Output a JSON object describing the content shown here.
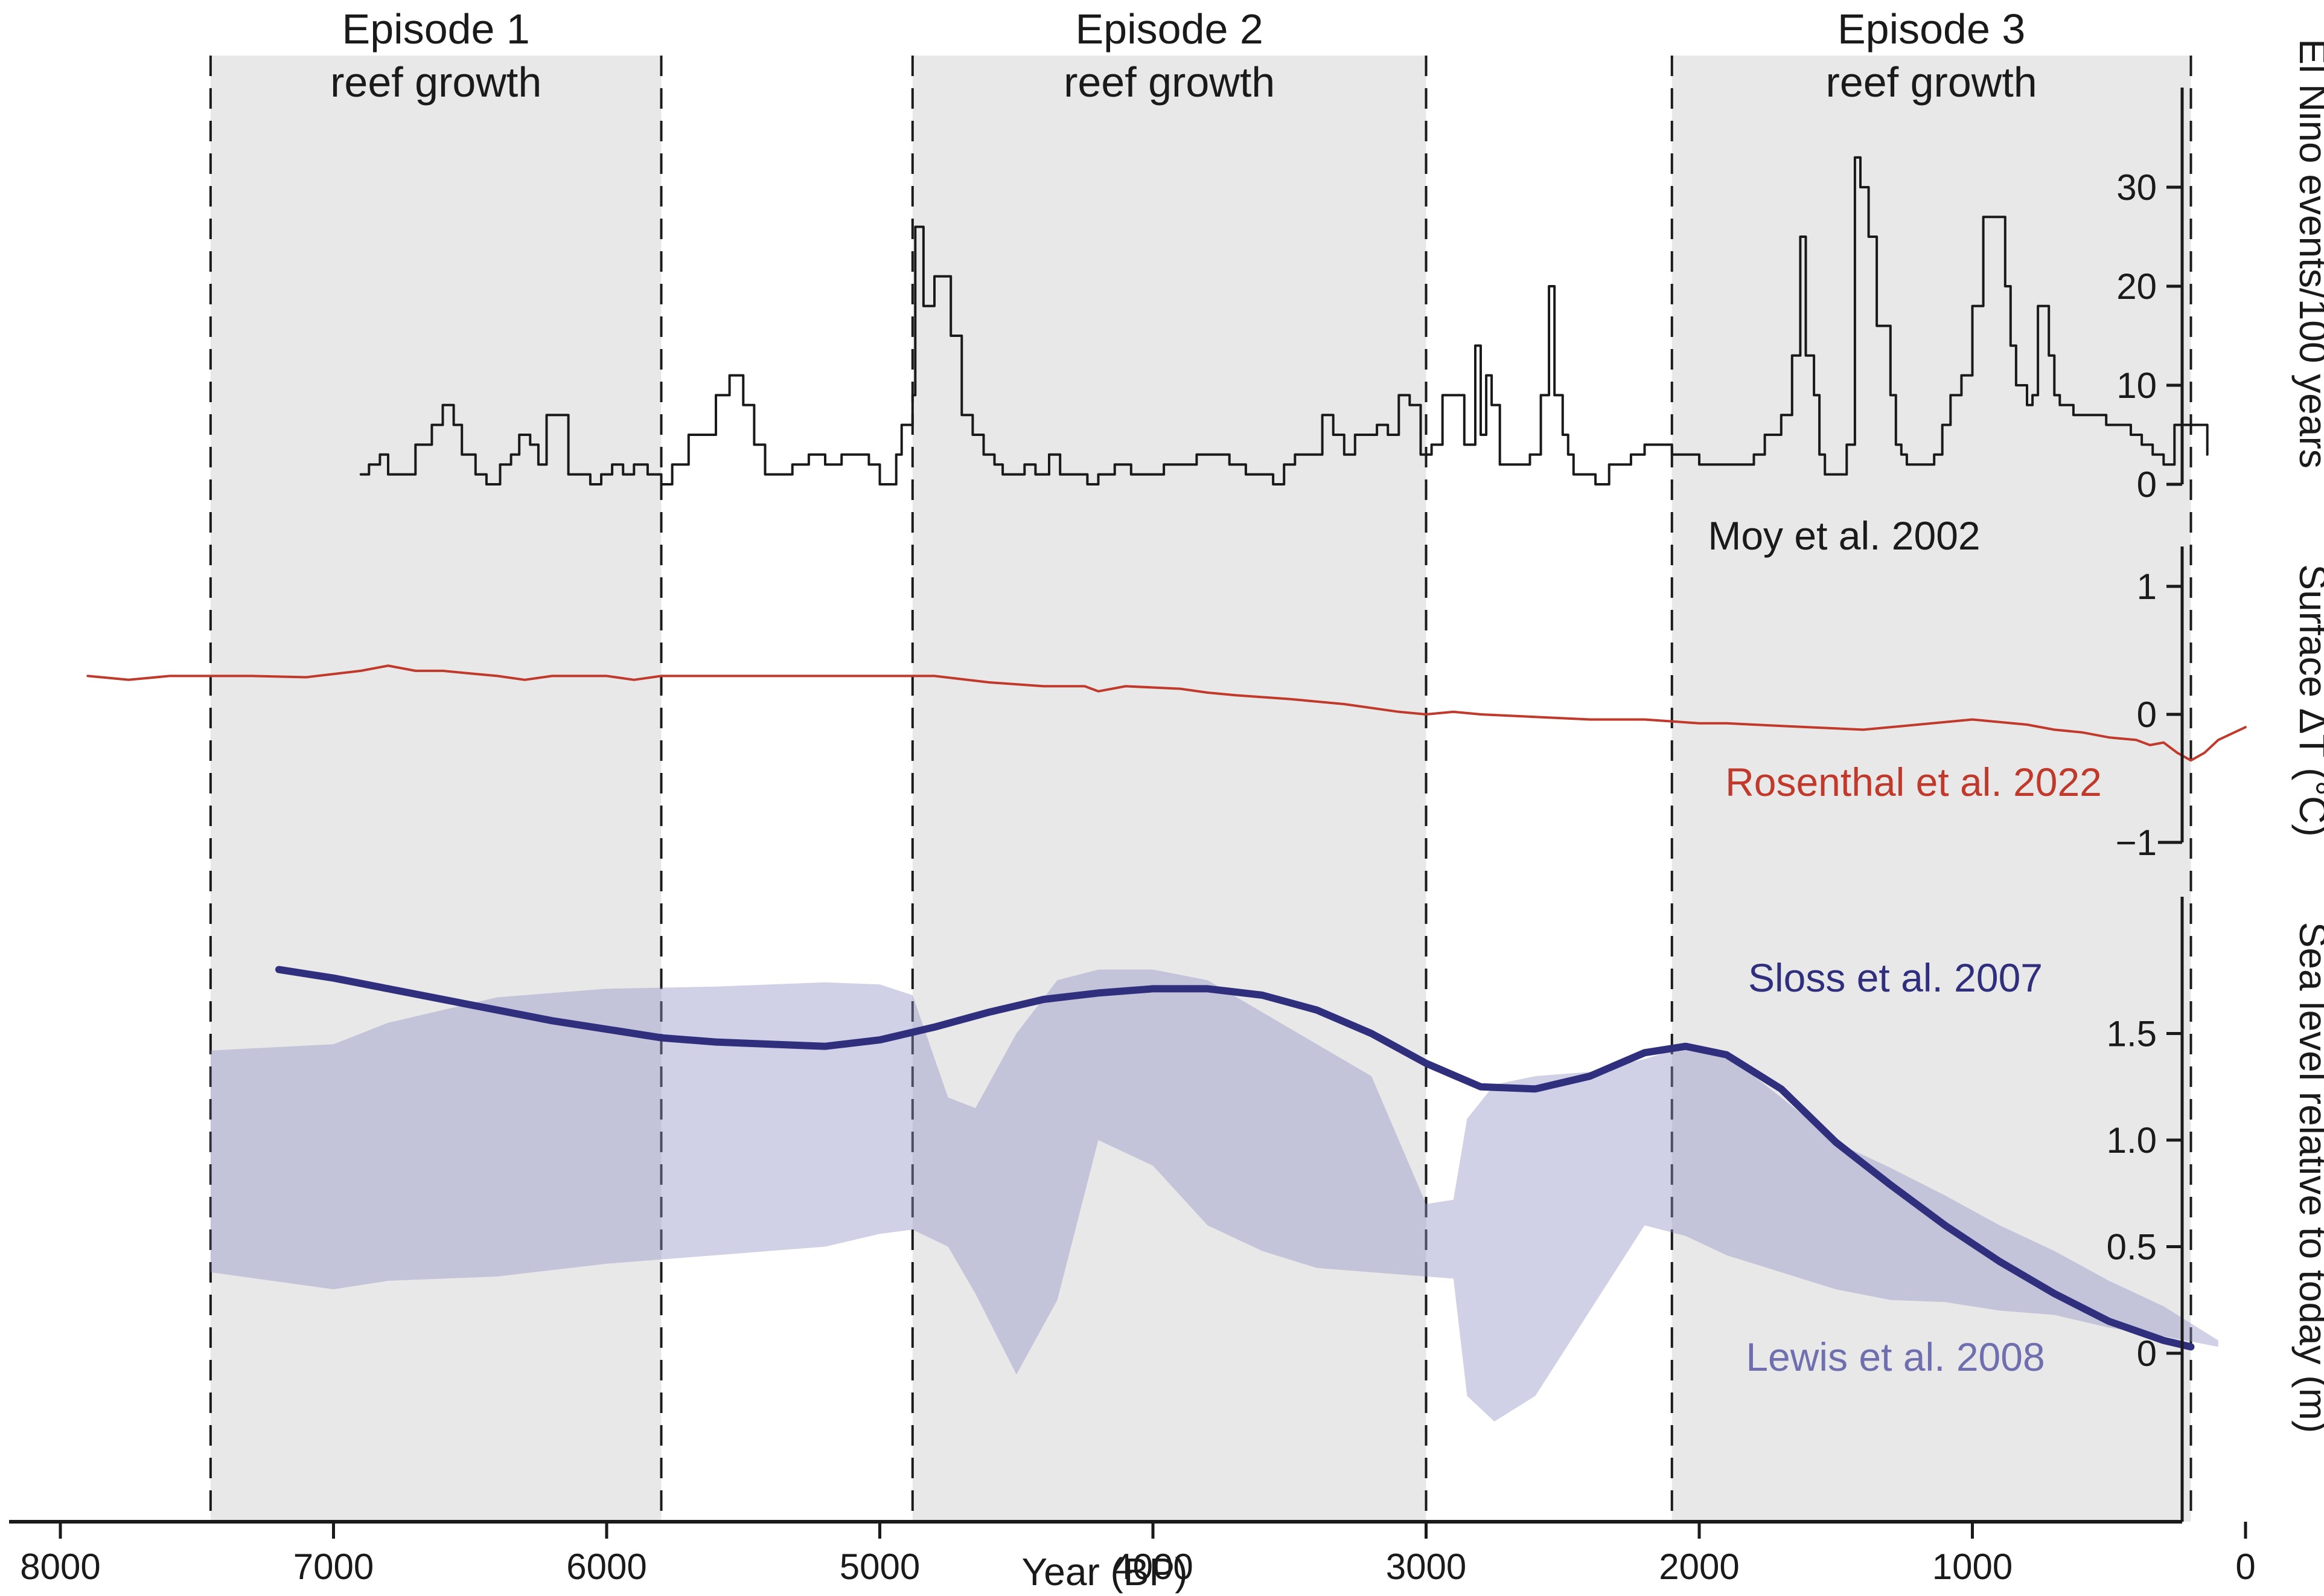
{
  "chart_data": {
    "type": "line",
    "x_axis": {
      "label": "Year (BP)",
      "range": [
        8000,
        0
      ],
      "ticks": [
        8000,
        7000,
        6000,
        5000,
        4000,
        3000,
        2000,
        1000,
        0
      ],
      "tick_labels": [
        "8000",
        "7000",
        "6000",
        "5000",
        "4000",
        "3000",
        "2000",
        "1000",
        "0"
      ]
    },
    "episodes": [
      {
        "title": "Episode 1",
        "subtitle": "reef growth",
        "start": 7450,
        "end": 5800
      },
      {
        "title": "Episode 2",
        "subtitle": "reef growth",
        "start": 4880,
        "end": 3000
      },
      {
        "title": "Episode 3",
        "subtitle": "reef growth",
        "start": 2100,
        "end": 200
      }
    ],
    "panels": [
      {
        "id": "elnino",
        "ylabel": "El Nino events/100 years",
        "ylim": [
          0,
          40
        ],
        "yticks": [
          0,
          10,
          20,
          30
        ],
        "ytick_labels": [
          "0",
          "10",
          "20",
          "30"
        ],
        "series": [
          {
            "name": "Moy et al. 2002",
            "color": "#1a1a1a",
            "step": true,
            "x": [
              6900,
              6870,
              6860,
              6830,
              6800,
              6760,
              6700,
              6640,
              6600,
              6560,
              6530,
              6480,
              6440,
              6390,
              6350,
              6320,
              6280,
              6250,
              6220,
              6190,
              6140,
              6110,
              6060,
              6020,
              5980,
              5940,
              5900,
              5850,
              5800,
              5760,
              5700,
              5650,
              5600,
              5550,
              5500,
              5460,
              5420,
              5370,
              5320,
              5260,
              5200,
              5140,
              5080,
              5040,
              5000,
              4940,
              4920,
              4880,
              4870,
              4840,
              4800,
              4780,
              4740,
              4700,
              4660,
              4620,
              4580,
              4550,
              4510,
              4470,
              4430,
              4380,
              4340,
              4290,
              4240,
              4200,
              4140,
              4080,
              4020,
              3960,
              3900,
              3840,
              3780,
              3720,
              3660,
              3600,
              3560,
              3520,
              3480,
              3440,
              3410,
              3380,
              3340,
              3300,
              3260,
              3220,
              3180,
              3140,
              3100,
              3060,
              3020,
              2980,
              2940,
              2900,
              2860,
              2820,
              2800,
              2780,
              2760,
              2730,
              2700,
              2660,
              2620,
              2580,
              2550,
              2530,
              2500,
              2480,
              2460,
              2420,
              2380,
              2330,
              2290,
              2250,
              2200,
              2170,
              2140,
              2100,
              2060,
              2000,
              1950,
              1920,
              1880,
              1840,
              1800,
              1760,
              1700,
              1660,
              1630,
              1610,
              1580,
              1560,
              1540,
              1500,
              1460,
              1430,
              1410,
              1380,
              1350,
              1300,
              1280,
              1260,
              1240,
              1200,
              1170,
              1140,
              1110,
              1080,
              1040,
              1000,
              960,
              920,
              880,
              860,
              840,
              800,
              780,
              760,
              720,
              700,
              680,
              650,
              630,
              600,
              560,
              540,
              510,
              480,
              450,
              420,
              380,
              340,
              300,
              260,
              220,
              180,
              140
            ],
            "y": [
              1,
              2,
              2,
              3,
              1,
              1,
              4,
              6,
              8,
              6,
              3,
              1,
              0,
              2,
              3,
              5,
              4,
              2,
              7,
              7,
              1,
              1,
              0,
              1,
              2,
              1,
              2,
              1,
              0,
              2,
              5,
              5,
              9,
              11,
              8,
              4,
              1,
              1,
              2,
              3,
              2,
              3,
              3,
              2,
              0,
              3,
              6,
              9,
              26,
              18,
              21,
              21,
              15,
              7,
              5,
              3,
              2,
              1,
              1,
              2,
              1,
              3,
              1,
              1,
              0,
              1,
              2,
              1,
              1,
              2,
              2,
              3,
              3,
              2,
              1,
              1,
              0,
              2,
              3,
              3,
              3,
              7,
              5,
              3,
              5,
              5,
              6,
              5,
              9,
              8,
              3,
              4,
              9,
              9,
              4,
              14,
              5,
              11,
              8,
              2,
              2,
              2,
              3,
              9,
              20,
              9,
              5,
              3,
              1,
              1,
              0,
              2,
              2,
              3,
              4,
              4,
              4,
              3,
              3,
              2,
              2,
              2,
              2,
              2,
              3,
              5,
              7,
              13,
              25,
              13,
              9,
              3,
              1,
              1,
              4,
              33,
              30,
              25,
              16,
              9,
              4,
              3,
              2,
              2,
              2,
              3,
              6,
              9,
              11,
              18,
              27,
              27,
              20,
              14,
              10,
              8,
              9,
              18,
              13,
              9,
              8,
              8,
              7,
              7,
              7,
              7,
              6,
              6,
              6,
              5,
              4,
              3,
              2,
              6,
              6,
              6,
              3
            ]
          }
        ]
      },
      {
        "id": "temperature",
        "ylabel": "Surface ΔT (°C)",
        "ylim": [
          -1,
          1.3
        ],
        "yticks": [
          -1,
          0,
          1
        ],
        "ytick_labels": [
          "−1",
          "0",
          "1"
        ],
        "series": [
          {
            "name": "Rosenthal et al. 2022",
            "color": "#c0392b",
            "x": [
              7900,
              7750,
              7600,
              7500,
              7400,
              7300,
              7100,
              6900,
              6800,
              6700,
              6600,
              6500,
              6400,
              6300,
              6200,
              6100,
              6000,
              5900,
              5800,
              5700,
              5500,
              5300,
              5100,
              4900,
              4800,
              4600,
              4400,
              4250,
              4200,
              4100,
              3900,
              3800,
              3700,
              3500,
              3300,
              3100,
              3000,
              2900,
              2800,
              2600,
              2400,
              2200,
              2000,
              1900,
              1800,
              1600,
              1400,
              1200,
              1000,
              800,
              700,
              600,
              500,
              400,
              350,
              300,
              250,
              200,
              150,
              100,
              0
            ],
            "y": [
              0.3,
              0.27,
              0.3,
              0.3,
              0.3,
              0.3,
              0.29,
              0.34,
              0.38,
              0.34,
              0.34,
              0.32,
              0.3,
              0.27,
              0.3,
              0.3,
              0.3,
              0.27,
              0.3,
              0.3,
              0.3,
              0.3,
              0.3,
              0.3,
              0.3,
              0.25,
              0.22,
              0.22,
              0.18,
              0.22,
              0.2,
              0.17,
              0.15,
              0.12,
              0.08,
              0.02,
              0.0,
              0.02,
              0.0,
              -0.02,
              -0.04,
              -0.04,
              -0.07,
              -0.07,
              -0.08,
              -0.1,
              -0.12,
              -0.08,
              -0.04,
              -0.08,
              -0.12,
              -0.14,
              -0.18,
              -0.2,
              -0.24,
              -0.22,
              -0.3,
              -0.36,
              -0.3,
              -0.2,
              -0.1
            ]
          }
        ]
      },
      {
        "id": "sealevel",
        "ylabel": "Sea level relative to today (m)",
        "ylim": [
          -0.5,
          1.85
        ],
        "yticks": [
          0,
          0.5,
          1.0,
          1.5
        ],
        "ytick_labels": [
          "0",
          "0.5",
          "1.0",
          "1.5"
        ],
        "series": [
          {
            "name": "Sloss et al. 2007",
            "color": "#2f2f7e",
            "x": [
              7200,
              7000,
              6800,
              6600,
              6400,
              6200,
              6000,
              5800,
              5600,
              5400,
              5200,
              5000,
              4800,
              4600,
              4400,
              4200,
              4000,
              3800,
              3600,
              3400,
              3200,
              3000,
              2800,
              2600,
              2400,
              2200,
              2050,
              1900,
              1700,
              1500,
              1300,
              1100,
              900,
              700,
              500,
              300,
              200
            ],
            "y": [
              1.8,
              1.76,
              1.71,
              1.66,
              1.61,
              1.56,
              1.52,
              1.48,
              1.46,
              1.45,
              1.44,
              1.47,
              1.53,
              1.6,
              1.66,
              1.69,
              1.71,
              1.71,
              1.68,
              1.61,
              1.5,
              1.36,
              1.25,
              1.24,
              1.3,
              1.41,
              1.44,
              1.4,
              1.24,
              0.99,
              0.79,
              0.6,
              0.43,
              0.28,
              0.15,
              0.06,
              0.03
            ]
          },
          {
            "name": "Lewis et al. 2008",
            "color": "#8f8fc4",
            "band": true,
            "x": [
              7450,
              7000,
              6800,
              6400,
              6000,
              5600,
              5200,
              5000,
              4880,
              4750,
              4650,
              4500,
              4350,
              4200,
              4000,
              3800,
              3600,
              3400,
              3200,
              3000,
              2900,
              2850,
              2750,
              2600,
              2400,
              2200,
              2050,
              1900,
              1700,
              1500,
              1300,
              1100,
              900,
              700,
              500,
              300,
              100
            ],
            "upper": [
              1.42,
              1.45,
              1.55,
              1.67,
              1.71,
              1.72,
              1.74,
              1.73,
              1.68,
              1.2,
              1.15,
              1.5,
              1.75,
              1.8,
              1.8,
              1.75,
              1.6,
              1.45,
              1.3,
              0.7,
              0.72,
              1.1,
              1.26,
              1.3,
              1.32,
              1.38,
              1.44,
              1.4,
              1.2,
              0.99,
              0.87,
              0.74,
              0.6,
              0.48,
              0.34,
              0.22,
              0.06
            ],
            "lower": [
              0.38,
              0.3,
              0.34,
              0.36,
              0.42,
              0.46,
              0.5,
              0.56,
              0.58,
              0.5,
              0.28,
              -0.1,
              0.25,
              1.0,
              0.88,
              0.6,
              0.48,
              0.4,
              0.38,
              0.36,
              0.35,
              -0.2,
              -0.32,
              -0.2,
              0.2,
              0.6,
              0.55,
              0.46,
              0.38,
              0.3,
              0.25,
              0.24,
              0.2,
              0.18,
              0.12,
              0.08,
              0.03
            ]
          }
        ]
      }
    ]
  }
}
